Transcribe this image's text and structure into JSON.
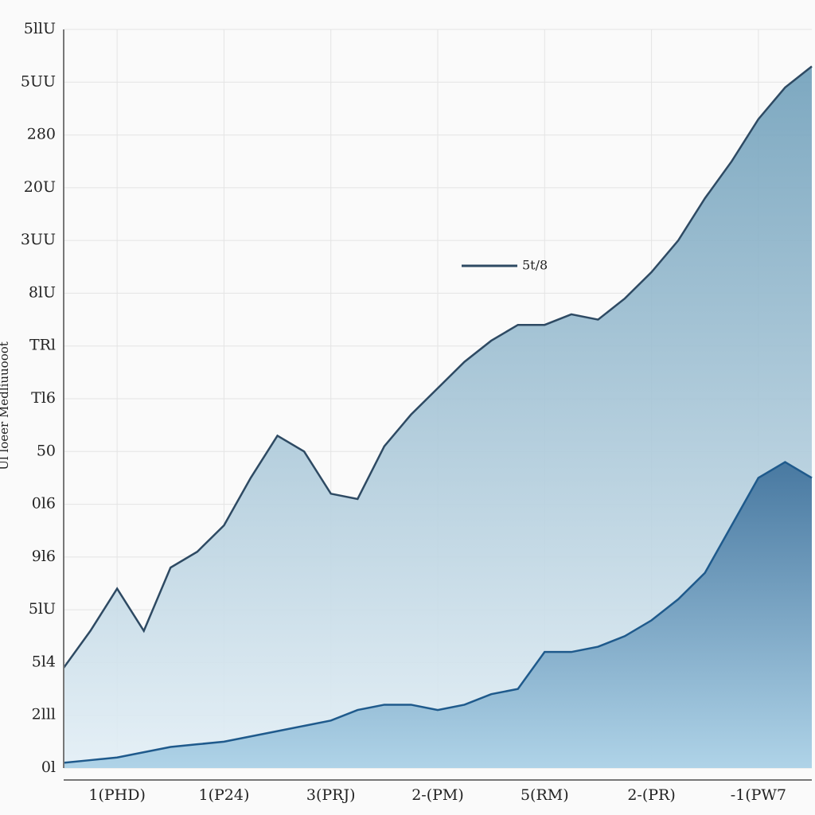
{
  "chart_data": {
    "type": "area",
    "y_label": "Ul loeer Medliuuooot",
    "x": [
      0,
      0.5,
      1,
      1.5,
      2,
      2.5,
      3,
      3.5,
      4,
      4.5,
      5,
      5.5,
      6,
      6.5,
      7,
      7.5,
      8,
      8.5,
      9,
      9.5,
      10,
      10.5,
      11,
      11.5,
      12,
      12.5,
      13,
      13.5,
      14
    ],
    "series": [
      {
        "name": "5t/8",
        "color": "#2e4a63",
        "fill": "#8fb8cc",
        "values": [
          1.9,
          2.6,
          3.4,
          2.6,
          3.8,
          4.1,
          4.6,
          5.5,
          6.3,
          6.0,
          5.2,
          5.1,
          6.1,
          6.7,
          7.2,
          7.7,
          8.1,
          8.4,
          8.4,
          8.6,
          8.5,
          8.9,
          9.4,
          10.0,
          10.8,
          11.5,
          12.3,
          12.9,
          13.3
        ]
      },
      {
        "color": "#1f5a8c",
        "fill": "#4d82ad",
        "values": [
          0.1,
          0.15,
          0.2,
          0.3,
          0.4,
          0.45,
          0.5,
          0.6,
          0.7,
          0.8,
          0.9,
          1.1,
          1.2,
          1.2,
          1.1,
          1.2,
          1.4,
          1.5,
          2.2,
          2.2,
          2.3,
          2.5,
          2.8,
          3.2,
          3.7,
          4.6,
          5.5,
          5.8,
          5.5
        ]
      }
    ],
    "xlim": [
      0,
      14
    ],
    "xticks": [
      {
        "value": 1,
        "label": "1(PHD)"
      },
      {
        "value": 3,
        "label": "1(P24)"
      },
      {
        "value": 5,
        "label": "3(PRJ)"
      },
      {
        "value": 7,
        "label": "2-(PM)"
      },
      {
        "value": 9,
        "label": "5(RM)"
      },
      {
        "value": 11,
        "label": "2-(PR)"
      },
      {
        "value": 13,
        "label": "-1(PW7"
      }
    ],
    "ylim": [
      0,
      14
    ],
    "yticks": [
      {
        "value": 0,
        "label": "0l"
      },
      {
        "value": 1,
        "label": "2lll"
      },
      {
        "value": 2,
        "label": "5l4"
      },
      {
        "value": 3,
        "label": "5lU"
      },
      {
        "value": 4,
        "label": "9l6"
      },
      {
        "value": 5,
        "label": "0l6"
      },
      {
        "value": 6,
        "label": "50"
      },
      {
        "value": 7,
        "label": "Tl6"
      },
      {
        "value": 8,
        "label": "TRl"
      },
      {
        "value": 9,
        "label": "8lU"
      },
      {
        "value": 10,
        "label": "3UU"
      },
      {
        "value": 11,
        "label": "20U"
      },
      {
        "value": 12,
        "label": "280"
      },
      {
        "value": 13,
        "label": "5UU"
      },
      {
        "value": 14,
        "label": "5llU"
      }
    ],
    "grid": true
  }
}
